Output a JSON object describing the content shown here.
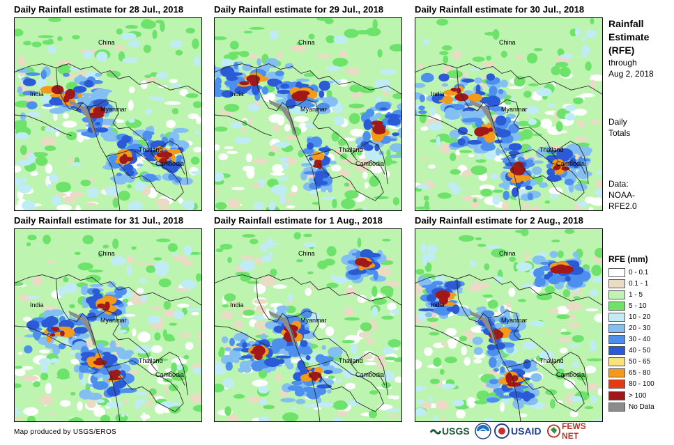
{
  "panels": [
    {
      "title": "Daily Rainfall estimate for 28 Jul., 2018"
    },
    {
      "title": "Daily Rainfall estimate for 29 Jul., 2018"
    },
    {
      "title": "Daily Rainfall estimate for 30 Jul., 2018"
    },
    {
      "title": "Daily Rainfall estimate for 31 Jul., 2018"
    },
    {
      "title": "Daily Rainfall estimate for 1 Aug., 2018"
    },
    {
      "title": "Daily Rainfall estimate for 2 Aug., 2018"
    }
  ],
  "map_labels": {
    "china": "China",
    "india": "India",
    "myanmar": "Myanmar",
    "thailand": "Thailand",
    "cambodia": "Cambodia"
  },
  "legend": {
    "title_line1": "Rainfall",
    "title_line2": "Estimate",
    "title_line3": "(RFE)",
    "through_line1": "through",
    "through_line2": "Aug 2, 2018",
    "daily_line1": "Daily",
    "daily_line2": "Totals",
    "data_line1": "Data:",
    "data_line2": "NOAA-",
    "data_line3": "RFE2.0",
    "scale_title": "RFE (mm)",
    "classes": [
      {
        "label": "0 - 0.1",
        "color": "#ffffff"
      },
      {
        "label": "0.1 - 1",
        "color": "#eadbc4"
      },
      {
        "label": "1 - 5",
        "color": "#bdf5b0"
      },
      {
        "label": "5 - 10",
        "color": "#6ee36c"
      },
      {
        "label": "10 - 20",
        "color": "#bfecf5"
      },
      {
        "label": "20 - 30",
        "color": "#84bff2"
      },
      {
        "label": "30 - 40",
        "color": "#4d8fec"
      },
      {
        "label": "40 - 50",
        "color": "#2a5ad6"
      },
      {
        "label": "50 - 65",
        "color": "#f8e47a"
      },
      {
        "label": "65 - 80",
        "color": "#f39a1c"
      },
      {
        "label": "80 - 100",
        "color": "#e83a12"
      },
      {
        "label": "> 100",
        "color": "#a01818"
      },
      {
        "label": "No Data",
        "color": "#8c8c8c"
      }
    ]
  },
  "footer": {
    "credit": "Map produced by USGS/EROS",
    "logos": {
      "usgs": "USGS",
      "usaid": "USAID",
      "fewsnet": "FEWS NET"
    }
  }
}
